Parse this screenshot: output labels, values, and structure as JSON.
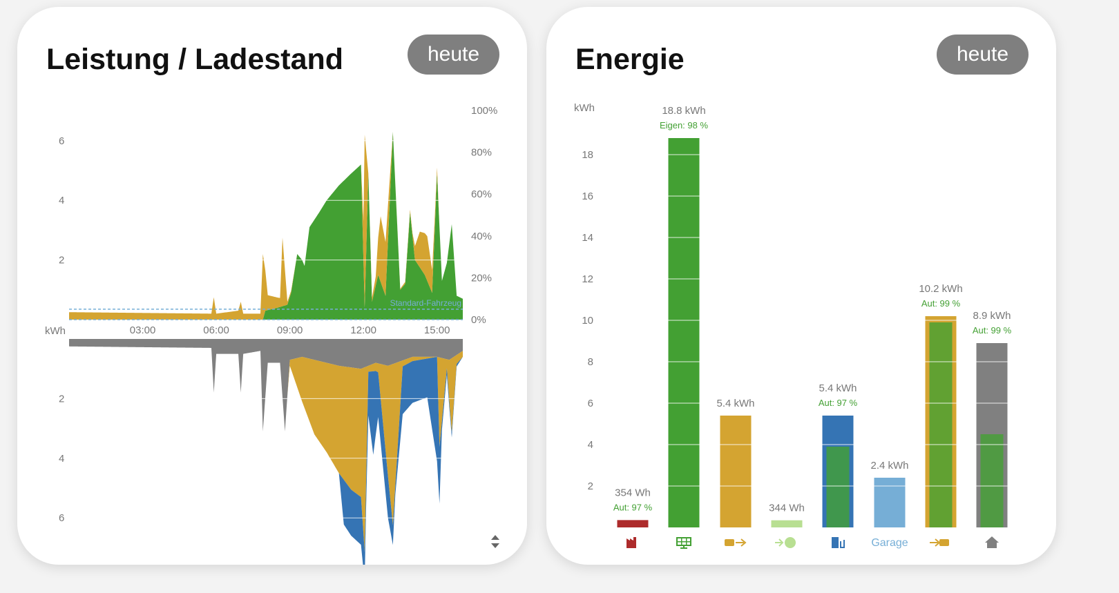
{
  "power_card": {
    "title": "Leistung / Ladestand",
    "period_button": "heute",
    "unit_label": "kWh",
    "vehicle_label": "Standard-Fahrzeug",
    "sort_icon": "up-down-arrows-icon"
  },
  "energy_card": {
    "title": "Energie",
    "period_button": "heute",
    "unit_label": "kWh"
  },
  "colors": {
    "pv": "#43a033",
    "battery": "#d4a431",
    "grid_import": "#ad2b2b",
    "grid_export": "#b8df92",
    "wallbox": "#3574b4",
    "garage": "#76aed6",
    "house": "#808080"
  },
  "chart_data": [
    {
      "type": "area",
      "title": "Leistung / Ladestand",
      "ylabel": "kWh",
      "x_ticks": [
        "03:00",
        "06:00",
        "09:00",
        "12:00",
        "15:00"
      ],
      "x_range_hours": [
        0,
        16.05
      ],
      "y_ticks_upper": [
        "2",
        "4",
        "6"
      ],
      "y_ticks_lower": [
        "2",
        "4",
        "6"
      ],
      "y_ticks_right": [
        "0%",
        "20%",
        "40%",
        "60%",
        "80%",
        "100%"
      ],
      "ylim": [
        0,
        7
      ],
      "upper_series": [
        {
          "key": "pv",
          "points": [
            [
              0,
              0
            ],
            [
              7.9,
              0
            ],
            [
              8.0,
              0.3
            ],
            [
              8.5,
              0.4
            ],
            [
              8.9,
              0.5
            ],
            [
              9.05,
              0.9
            ],
            [
              9.3,
              2.2
            ],
            [
              9.5,
              2.0
            ],
            [
              9.6,
              1.8
            ],
            [
              9.8,
              3.1
            ],
            [
              10.2,
              3.6
            ],
            [
              10.5,
              4.0
            ],
            [
              11,
              4.5
            ],
            [
              11.5,
              4.9
            ],
            [
              11.9,
              5.2
            ],
            [
              12.05,
              0.4
            ],
            [
              12.2,
              4.9
            ],
            [
              12.35,
              0.6
            ],
            [
              12.6,
              1.5
            ],
            [
              12.9,
              0.8
            ],
            [
              13.2,
              6.3
            ],
            [
              13.5,
              1.0
            ],
            [
              13.7,
              1.2
            ],
            [
              13.9,
              3.6
            ],
            [
              14.1,
              2.0
            ],
            [
              14.5,
              1.5
            ],
            [
              14.8,
              0.9
            ],
            [
              15.0,
              4.9
            ],
            [
              15.2,
              1.3
            ],
            [
              15.4,
              1.9
            ],
            [
              15.6,
              3.2
            ],
            [
              15.8,
              0.8
            ],
            [
              16.05,
              0.7
            ]
          ]
        },
        {
          "key": "battery",
          "points": [
            [
              0,
              0.25
            ],
            [
              5.8,
              0.2
            ],
            [
              5.9,
              0.75
            ],
            [
              6.0,
              0.2
            ],
            [
              6.9,
              0.3
            ],
            [
              7.0,
              0.6
            ],
            [
              7.1,
              0.2
            ],
            [
              7.8,
              0.2
            ],
            [
              7.9,
              2.2
            ],
            [
              8.1,
              0.5
            ],
            [
              8.6,
              0.3
            ],
            [
              8.7,
              2.3
            ],
            [
              8.9,
              0.1
            ],
            [
              9.3,
              0
            ],
            [
              11.9,
              0
            ],
            [
              12.0,
              1.3
            ],
            [
              12.05,
              5.8
            ],
            [
              12.2,
              0
            ],
            [
              12.5,
              0.3
            ],
            [
              12.7,
              2.2
            ],
            [
              12.9,
              1.8
            ],
            [
              13.2,
              0
            ],
            [
              14.0,
              0.1
            ],
            [
              14.3,
              1.2
            ],
            [
              14.6,
              1.5
            ],
            [
              14.9,
              0.4
            ],
            [
              15.1,
              0
            ],
            [
              16.05,
              0
            ]
          ]
        }
      ],
      "lower_series": [
        {
          "key": "house",
          "points": [
            [
              0,
              0.25
            ],
            [
              5.8,
              0.3
            ],
            [
              5.9,
              1.8
            ],
            [
              6.0,
              0.5
            ],
            [
              6.9,
              0.5
            ],
            [
              7.0,
              1.8
            ],
            [
              7.1,
              0.5
            ],
            [
              7.8,
              0.4
            ],
            [
              7.9,
              3.1
            ],
            [
              8.1,
              0.8
            ],
            [
              8.6,
              0.8
            ],
            [
              8.8,
              3.1
            ],
            [
              9.0,
              0.7
            ],
            [
              9.5,
              0.6
            ],
            [
              10,
              0.7
            ],
            [
              11,
              0.9
            ],
            [
              11.9,
              1.0
            ],
            [
              12.5,
              0.8
            ],
            [
              13,
              0.9
            ],
            [
              14,
              0.6
            ],
            [
              15,
              0.6
            ],
            [
              15.5,
              0.7
            ],
            [
              16.05,
              0.4
            ]
          ]
        },
        {
          "key": "battery",
          "points": [
            [
              0,
              0
            ],
            [
              8.9,
              0
            ],
            [
              9.0,
              0.2
            ],
            [
              9.5,
              1.5
            ],
            [
              10,
              2.5
            ],
            [
              10.5,
              3.0
            ],
            [
              11,
              3.6
            ],
            [
              11.5,
              4.1
            ],
            [
              11.9,
              4.3
            ],
            [
              12.05,
              6.2
            ],
            [
              12.2,
              0.2
            ],
            [
              12.6,
              0.3
            ],
            [
              13.2,
              5.4
            ],
            [
              13.6,
              0.2
            ],
            [
              15.0,
              0
            ],
            [
              15.1,
              3.0
            ],
            [
              15.4,
              0.3
            ],
            [
              15.6,
              2.5
            ],
            [
              15.8,
              0.3
            ],
            [
              16.05,
              0.2
            ]
          ]
        },
        {
          "key": "wallbox",
          "points": [
            [
              0,
              0
            ],
            [
              11.0,
              0
            ],
            [
              11.2,
              1.5
            ],
            [
              11.9,
              1.6
            ],
            [
              12.1,
              0.8
            ],
            [
              12.4,
              2.8
            ],
            [
              12.6,
              1.5
            ],
            [
              13.0,
              1.4
            ],
            [
              13.3,
              0.3
            ],
            [
              13.6,
              1.6
            ],
            [
              14.0,
              1.4
            ],
            [
              14.6,
              1.3
            ],
            [
              15.0,
              3.5
            ],
            [
              15.2,
              0.3
            ],
            [
              16.05,
              0
            ]
          ]
        }
      ],
      "soc_dashed_levels_percent": [
        0,
        5
      ]
    },
    {
      "type": "bar",
      "ylabel": "kWh",
      "y_ticks": [
        "2",
        "4",
        "6",
        "8",
        "10",
        "12",
        "14",
        "16",
        "18"
      ],
      "ylim": [
        0,
        20
      ],
      "bars": [
        {
          "key": "grid_import",
          "icon": "factory-icon",
          "value": 0.354,
          "label": "354 Wh",
          "sub": "Aut: 97 %",
          "inner_green": 0
        },
        {
          "key": "pv",
          "icon": "solar-panel-icon",
          "value": 18.8,
          "label": "18.8 kWh",
          "sub": "Eigen: 98 %",
          "inner_green": 0
        },
        {
          "key": "battery",
          "icon": "battery-out-icon",
          "value": 5.4,
          "label": "5.4 kWh",
          "sub": "",
          "inner_green": 0
        },
        {
          "key": "grid_export",
          "icon": "grid-export-icon",
          "value": 0.344,
          "label": "344 Wh",
          "sub": "",
          "inner_green": 0
        },
        {
          "key": "wallbox",
          "icon": "ev-charger-icon",
          "value": 5.4,
          "label": "5.4 kWh",
          "sub": "Aut: 97 %",
          "inner_green": 3.9
        },
        {
          "key": "garage",
          "icon": "",
          "icon_text": "Garage",
          "value": 2.4,
          "label": "2.4 kWh",
          "sub": "",
          "inner_green": 0
        },
        {
          "key": "battery",
          "icon": "battery-in-icon",
          "value": 10.2,
          "label": "10.2 kWh",
          "sub": "Aut: 99 %",
          "inner_green": 9.9
        },
        {
          "key": "house",
          "icon": "house-icon",
          "value": 8.9,
          "label": "8.9 kWh",
          "sub": "Aut: 99 %",
          "inner_green": 4.5
        }
      ]
    }
  ]
}
